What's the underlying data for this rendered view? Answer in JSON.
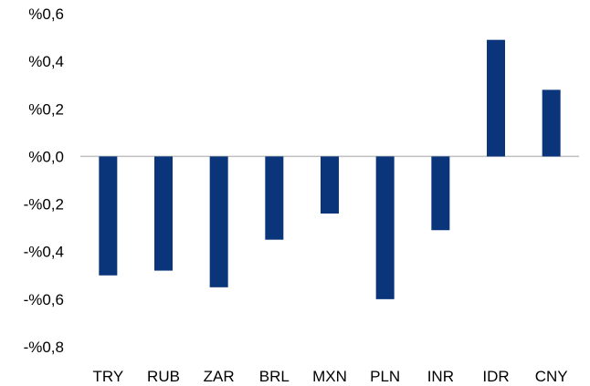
{
  "chart_data": {
    "type": "bar",
    "title": "",
    "xlabel": "",
    "ylabel": "",
    "categories": [
      "TRY",
      "RUB",
      "ZAR",
      "BRL",
      "MXN",
      "PLN",
      "INR",
      "IDR",
      "CNY"
    ],
    "series": [
      {
        "values": [
          -0.5,
          -0.48,
          -0.55,
          -0.35,
          -0.24,
          -0.6,
          -0.31,
          0.49,
          0.28
        ]
      }
    ],
    "ylim": [
      -0.8,
      0.6
    ],
    "yticks": [
      0.6,
      0.4,
      0.2,
      0.0,
      -0.2,
      -0.4,
      -0.6,
      -0.8
    ],
    "ytick_labels": [
      "%0,6",
      "%0,4",
      "%0,2",
      "%0,0",
      "-%0,2",
      "-%0,4",
      "-%0,6",
      "-%0,8"
    ],
    "grid": false,
    "legend": "none",
    "colors": {
      "bar": "#0a357a",
      "zero_line": "#bfbfbf"
    }
  }
}
